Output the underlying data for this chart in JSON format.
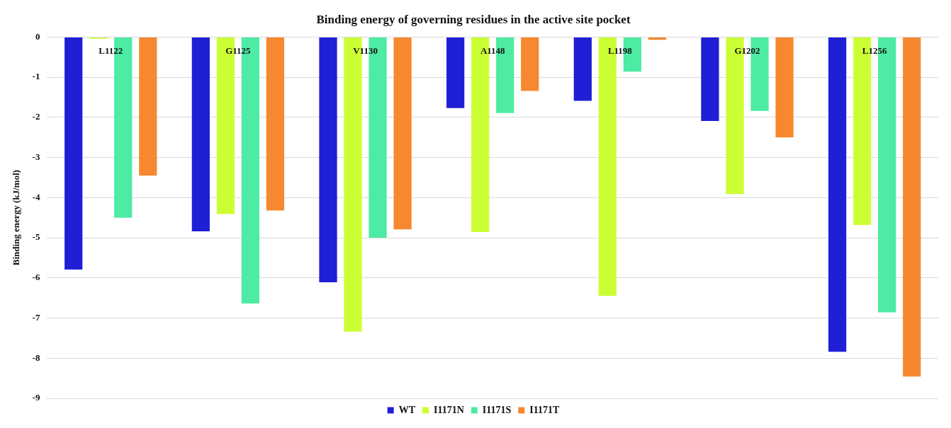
{
  "chart_data": {
    "type": "bar",
    "title": "Binding energy of governing residues in the active site pocket",
    "ylabel": "Binding energy (kJ/mol)",
    "categories": [
      "L1122",
      "G1125",
      "V1130",
      "A1148",
      "L1198",
      "G1202",
      "L1256"
    ],
    "series": [
      {
        "name": "WT",
        "color": "#1f1fd6",
        "values": [
          -5.79,
          -4.84,
          -6.11,
          -1.77,
          -1.59,
          -2.09,
          -7.84
        ]
      },
      {
        "name": "I1171N",
        "color": "#ccff33",
        "values": [
          -0.04,
          -4.41,
          -7.34,
          -4.86,
          -6.45,
          -3.91,
          -4.68
        ]
      },
      {
        "name": "I1171S",
        "color": "#4deba3",
        "values": [
          -4.5,
          -6.64,
          -5.0,
          -1.89,
          -0.86,
          -1.84,
          -6.86
        ]
      },
      {
        "name": "I1171T",
        "color": "#f7882f",
        "values": [
          -3.45,
          -4.32,
          -4.79,
          -1.34,
          -0.07,
          -2.5,
          -8.46
        ]
      }
    ],
    "ylim": [
      -9,
      0
    ],
    "yticks": [
      -9,
      -8,
      -7,
      -6,
      -5,
      -4,
      -3,
      -2,
      -1,
      0
    ],
    "grid": "y",
    "legend": "bottom"
  }
}
